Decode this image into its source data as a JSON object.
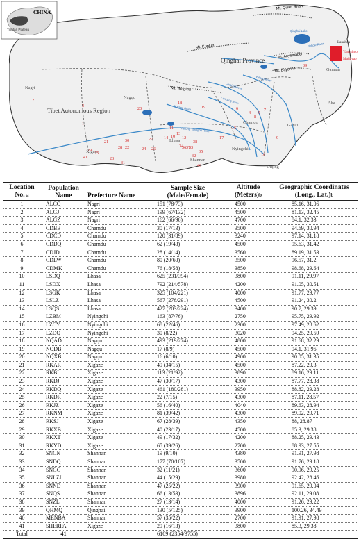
{
  "map": {
    "inset_title": "CHINA",
    "inset_label": "Tibetan Plateau",
    "region_labels": {
      "qinghai": "Qinghai Province",
      "tibet": "Tibet Autonomous Region"
    },
    "mountains": [
      "Mt. Qilian Shan",
      "Mt. Kunlun",
      "Mt. Tongiha",
      "Mt. Bayanhar",
      "Mt. Anyemaqen"
    ],
    "prefectures": [
      "Nagri",
      "Nagqu",
      "Chamdo",
      "Lhasa",
      "Xigaze",
      "Shannan",
      "Nyingchi",
      "Ganzi",
      "Aba",
      "Gannan",
      "Diqing"
    ],
    "rivers": [
      "Qinghai Lake",
      "Yellow River",
      "Jinsha River",
      "Yalong River",
      "Lancang River",
      "Nujiang River",
      "Yarlung Tsangpo River"
    ],
    "sampled_cities": [
      "Yangzhuo",
      "Majiayao"
    ],
    "city_label": "Lanzhou",
    "site_numbers": [
      "1",
      "2",
      "3",
      "4",
      "5",
      "6",
      "7",
      "8",
      "9",
      "10",
      "11",
      "12",
      "13",
      "14",
      "15",
      "16",
      "17",
      "18",
      "19",
      "20",
      "21",
      "22",
      "23",
      "24",
      "25",
      "26",
      "27",
      "28",
      "29",
      "30",
      "31",
      "32",
      "33",
      "34",
      "35",
      "36",
      "37",
      "38",
      "39",
      "40",
      "41"
    ]
  },
  "table": {
    "headers": [
      {
        "main": "Location No.",
        "mark": "a"
      },
      {
        "main": "Population Name",
        "mark": ""
      },
      {
        "main": "Prefecture Name",
        "mark": ""
      },
      {
        "main": "Sample Size (Male/Female)",
        "mark": ""
      },
      {
        "main": "Altitude (Meters)",
        "mark": "b"
      },
      {
        "main": "Geographic Coordinates (Long., Lat.)",
        "mark": "b"
      }
    ],
    "rows": [
      [
        "1",
        "ALCQ",
        "Nagri",
        "151 (78/73)",
        "4500",
        "85.16, 31.06"
      ],
      [
        "2",
        "ALGJ",
        "Nagri",
        "199 (67/132)",
        "4500",
        "81.13, 32.45"
      ],
      [
        "3",
        "ALGZ",
        "Nagri",
        "162 (66/96)",
        "4700",
        "84.1, 32.33"
      ],
      [
        "4",
        "CDBB",
        "Chamdu",
        "30 (17/13)",
        "3500",
        "94.69, 30.94"
      ],
      [
        "5",
        "CDCD",
        "Chamdu",
        "120 (31/89)",
        "3240",
        "97.14, 31.18"
      ],
      [
        "6",
        "CDDQ",
        "Chamdu",
        "62 (19/43)",
        "4500",
        "95.63, 31.42"
      ],
      [
        "7",
        "CDJD",
        "Chamdu",
        "28 (14/14)",
        "3560",
        "89.19, 31.53"
      ],
      [
        "8",
        "CDLW",
        "Chamdu",
        "80 (20/60)",
        "3500",
        "96.57, 31.2"
      ],
      [
        "9",
        "CDMK",
        "Chamdu",
        "76 (18/58)",
        "3850",
        "98.68, 29.64"
      ],
      [
        "10",
        "LSDQ",
        "Lhasa",
        "625 (231/394)",
        "3800",
        "91.11, 29.97"
      ],
      [
        "11",
        "LSDX",
        "Lhasa",
        "792 (214/578)",
        "4200",
        "91.05, 30.51"
      ],
      [
        "12",
        "LSGK",
        "Lhasa",
        "325 (104/221)",
        "4000",
        "91.77, 29.77"
      ],
      [
        "13",
        "LSLZ",
        "Lhasa",
        "567 (276/291)",
        "4500",
        "91.24, 30.2"
      ],
      [
        "14",
        "LSQS",
        "Lhasa",
        "427 (203/224)",
        "3400",
        "90.7, 29.39"
      ],
      [
        "15",
        "LZBM",
        "Nyingchi",
        "163 (87/76)",
        "2750",
        "95.75, 29.92"
      ],
      [
        "16",
        "LZCY",
        "Nyingchi",
        "68 (22/46)",
        "2300",
        "97.49, 28.62"
      ],
      [
        "17",
        "LZDQ",
        "Nyingchi",
        "30 (8/22)",
        "3020",
        "94.25, 29.59"
      ],
      [
        "18",
        "NQAD",
        "Nagqu",
        "493 (219/274)",
        "4800",
        "91.68, 32.29"
      ],
      [
        "19",
        "NQDB",
        "Nagqu",
        "17 (8/9)",
        "4500",
        "94.1, 31.96"
      ],
      [
        "20",
        "NQXB",
        "Nagqu",
        "16 (6/10)",
        "4900",
        "90.05, 31.35"
      ],
      [
        "21",
        "RKAR",
        "Xigaze",
        "49 (34/15)",
        "4500",
        "87.22, 29.3"
      ],
      [
        "22",
        "RKBL",
        "Xigaze",
        "113 (21/92)",
        "3890",
        "89.16, 29.11"
      ],
      [
        "23",
        "RKDJ",
        "Xigaze",
        "47 (30/17)",
        "4300",
        "87.77, 28.38"
      ],
      [
        "24",
        "RKDQ",
        "Xigaze",
        "461 (180/281)",
        "3950",
        "88.82, 29.28"
      ],
      [
        "25",
        "RKDR",
        "Xigaze",
        "22 (7/15)",
        "4300",
        "87.11, 28.57"
      ],
      [
        "26",
        "RKJZ",
        "Xigaze",
        "56 (16/40)",
        "4040",
        "89.63, 28.94"
      ],
      [
        "27",
        "RKNM",
        "Xigaze",
        "81 (39/42)",
        "4300",
        "89.02, 29.71"
      ],
      [
        "28",
        "RKSJ",
        "Xigaze",
        "67 (28/39)",
        "4350",
        "88, 28.87"
      ],
      [
        "29",
        "RKXB",
        "Xigaze",
        "40 (23/17)",
        "4500",
        "85.3, 29.38"
      ],
      [
        "30",
        "RKXT",
        "Xigaze",
        "49 (17/32)",
        "4200",
        "88.25, 29.43"
      ],
      [
        "31",
        "RKYD",
        "Xigaze",
        "65 (39/26)",
        "2700",
        "88.93, 27.55"
      ],
      [
        "32",
        "SNCN",
        "Shannan",
        "19 (9/10)",
        "4380",
        "91.91, 27.98"
      ],
      [
        "33",
        "SNDQ",
        "Shannan",
        "177 (70/107)",
        "3500",
        "91.76, 29.18"
      ],
      [
        "34",
        "SNGG",
        "Shannan",
        "32 (11/21)",
        "3600",
        "90.96, 29.25"
      ],
      [
        "35",
        "SNLZI",
        "Shannan",
        "44 (15/29)",
        "3980",
        "92.42, 28.46"
      ],
      [
        "36",
        "SNND",
        "Shannan",
        "47 (25/22)",
        "3900",
        "91.65, 29.04"
      ],
      [
        "37",
        "SNQS",
        "Shannan",
        "66 (13/53)",
        "3896",
        "92.11, 29.08"
      ],
      [
        "38",
        "SNZL",
        "Shannan",
        "27 (13/14)",
        "4000",
        "91.26, 29.22"
      ],
      [
        "39",
        "QHMQ",
        "Qinghai",
        "130 (5/125)",
        "3900",
        "100.26, 34.49"
      ],
      [
        "40",
        "MENBA",
        "Shannan",
        "57 (35/22)",
        "2700",
        "91.91, 27.98"
      ],
      [
        "41",
        "SHERPA",
        "Xigaze",
        "29 (16/13)",
        "3800",
        "85.3, 29.38"
      ]
    ],
    "total": {
      "label": "Total",
      "count": "41",
      "sample": "6109 (2354/3755)"
    }
  },
  "colors": {
    "rivers": "#3a88c8",
    "lakes": "#2c6fb8",
    "sampled_city": "#e01d2a",
    "plateau_fill": "#f0f0f0",
    "site_numbers": "#d42a2a"
  }
}
